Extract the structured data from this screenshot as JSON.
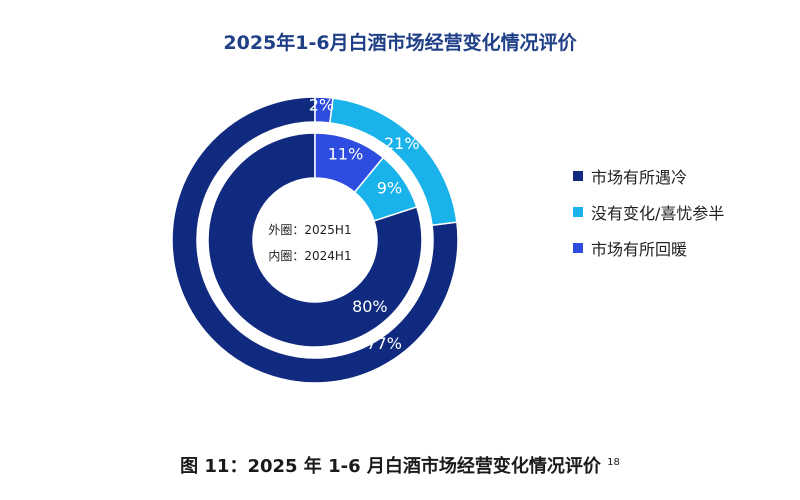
{
  "chart_data": {
    "type": "donut",
    "title": "2025年1-6月白酒市场经营变化情况评价",
    "categories": [
      "市场有所遇冷",
      "没有变化/喜忧参半",
      "市场有所回暖"
    ],
    "colors": [
      "#0f2a7f",
      "#1ab2ea",
      "#2e4ce0"
    ],
    "series": [
      {
        "name": "2025H1",
        "ring": "outer",
        "values": [
          77,
          21,
          2
        ],
        "labels": [
          "77%",
          "21%",
          "2%"
        ]
      },
      {
        "name": "2024H1",
        "ring": "inner",
        "values": [
          80,
          9,
          11
        ],
        "labels": [
          "80%",
          "9%",
          "11%"
        ]
      }
    ],
    "center_labels": [
      "外圈：2025H1",
      "内圈：2024H1"
    ],
    "legend_position": "right"
  },
  "caption": {
    "text": "图 11：2025 年 1-6 月白酒市场经营变化情况评价",
    "footnote": "18"
  }
}
